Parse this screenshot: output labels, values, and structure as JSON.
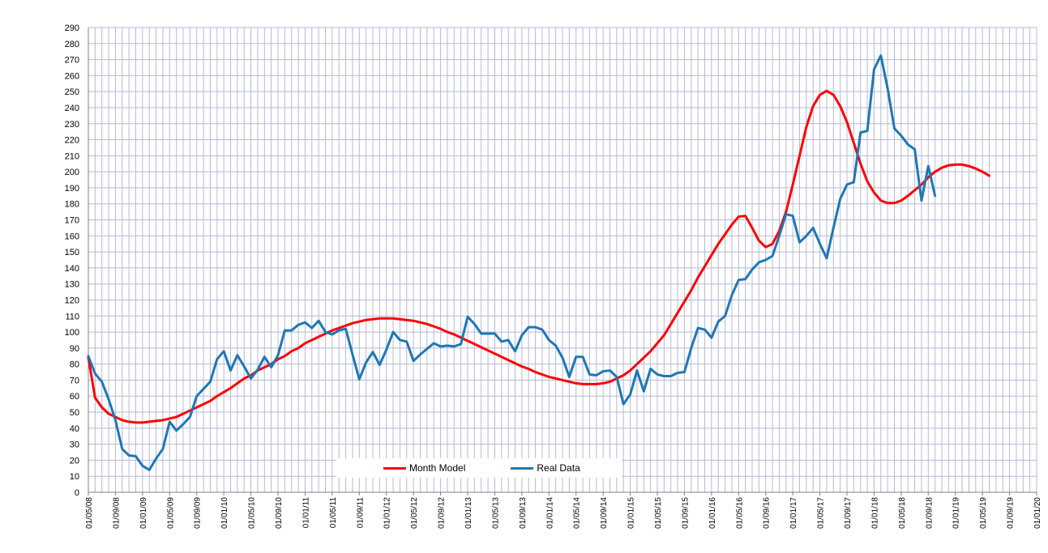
{
  "colors": {
    "model": "#FF0000",
    "real": "#1F77B4",
    "grid": "#B8B8D8",
    "axis": "#808080"
  },
  "chart_data": {
    "type": "line",
    "title": "",
    "xlabel": "",
    "ylabel": "",
    "ylim": [
      0,
      290
    ],
    "yticks": [
      0,
      10,
      20,
      30,
      40,
      50,
      60,
      70,
      80,
      90,
      100,
      110,
      120,
      130,
      140,
      150,
      160,
      170,
      180,
      190,
      200,
      210,
      220,
      230,
      240,
      250,
      260,
      270,
      280,
      290
    ],
    "x_ticklabels": [
      "01/05/08",
      "01/09/08",
      "01/01/09",
      "01/05/09",
      "01/09/09",
      "01/01/10",
      "01/05/10",
      "01/09/10",
      "01/01/11",
      "01/05/11",
      "01/09/11",
      "01/01/12",
      "01/05/12",
      "01/09/12",
      "01/01/13",
      "01/05/13",
      "01/09/13",
      "01/01/14",
      "01/05/14",
      "01/09/14",
      "01/01/15",
      "01/05/15",
      "01/09/15",
      "01/01/16",
      "01/05/16",
      "01/09/16",
      "01/01/17",
      "01/05/17",
      "01/09/17",
      "01/01/18",
      "01/05/18",
      "01/09/18",
      "01/01/19",
      "01/05/19",
      "01/09/19",
      "01/01/20"
    ],
    "x_index_range": [
      0,
      140
    ],
    "grid": true,
    "legend": "bottom-center",
    "series": [
      {
        "name": "Month Model",
        "color": "#FF0000",
        "points": [
          [
            0,
            84
          ],
          [
            1,
            59
          ],
          [
            2,
            53
          ],
          [
            3,
            49
          ],
          [
            4,
            47
          ],
          [
            5,
            45
          ],
          [
            6,
            44
          ],
          [
            7,
            43.5
          ],
          [
            8,
            43.5
          ],
          [
            9,
            44
          ],
          [
            10,
            44.5
          ],
          [
            11,
            45
          ],
          [
            12,
            46
          ],
          [
            13,
            47
          ],
          [
            14,
            49
          ],
          [
            15,
            51
          ],
          [
            16,
            53
          ],
          [
            17,
            55
          ],
          [
            18,
            57
          ],
          [
            19,
            60
          ],
          [
            20,
            62.5
          ],
          [
            21,
            65
          ],
          [
            22,
            68
          ],
          [
            23,
            71
          ],
          [
            24,
            73
          ],
          [
            25,
            76
          ],
          [
            26,
            78
          ],
          [
            27,
            80
          ],
          [
            28,
            83
          ],
          [
            29,
            85
          ],
          [
            30,
            88
          ],
          [
            31,
            90
          ],
          [
            32,
            93
          ],
          [
            33,
            95
          ],
          [
            34,
            97
          ],
          [
            35,
            99
          ],
          [
            36,
            101
          ],
          [
            37,
            102.5
          ],
          [
            38,
            104
          ],
          [
            39,
            105.5
          ],
          [
            40,
            106.5
          ],
          [
            41,
            107.5
          ],
          [
            42,
            108
          ],
          [
            43,
            108.5
          ],
          [
            44,
            108.5
          ],
          [
            45,
            108.5
          ],
          [
            46,
            108
          ],
          [
            47,
            107.5
          ],
          [
            48,
            107
          ],
          [
            49,
            106
          ],
          [
            50,
            105
          ],
          [
            51,
            103.5
          ],
          [
            52,
            102
          ],
          [
            53,
            100
          ],
          [
            54,
            98.5
          ],
          [
            55,
            96.5
          ],
          [
            56,
            94.5
          ],
          [
            57,
            92.5
          ],
          [
            58,
            90.5
          ],
          [
            59,
            88.5
          ],
          [
            60,
            86.5
          ],
          [
            61,
            84.5
          ],
          [
            62,
            82.5
          ],
          [
            63,
            80.5
          ],
          [
            64,
            78.5
          ],
          [
            65,
            77
          ],
          [
            66,
            75
          ],
          [
            67,
            73.5
          ],
          [
            68,
            72
          ],
          [
            69,
            71
          ],
          [
            70,
            70
          ],
          [
            71,
            69
          ],
          [
            72,
            68
          ],
          [
            73,
            67.5
          ],
          [
            74,
            67.5
          ],
          [
            75,
            67.5
          ],
          [
            76,
            68
          ],
          [
            77,
            69
          ],
          [
            78,
            71
          ],
          [
            79,
            73
          ],
          [
            80,
            76
          ],
          [
            81,
            80
          ],
          [
            82,
            84
          ],
          [
            83,
            88
          ],
          [
            84,
            93
          ],
          [
            85,
            98
          ],
          [
            86,
            105
          ],
          [
            87,
            112
          ],
          [
            88,
            119
          ],
          [
            89,
            126
          ],
          [
            90,
            134
          ],
          [
            91,
            141
          ],
          [
            92,
            148
          ],
          [
            93,
            155
          ],
          [
            94,
            161
          ],
          [
            95,
            167
          ],
          [
            96,
            172
          ],
          [
            97,
            172.5
          ],
          [
            98,
            165
          ],
          [
            99,
            157
          ],
          [
            100,
            153
          ],
          [
            101,
            155
          ],
          [
            102,
            163
          ],
          [
            103,
            175
          ],
          [
            104,
            192
          ],
          [
            105,
            210
          ],
          [
            106,
            228
          ],
          [
            107,
            241
          ],
          [
            108,
            248
          ],
          [
            109,
            250.5
          ],
          [
            110,
            248
          ],
          [
            111,
            241
          ],
          [
            112,
            231
          ],
          [
            113,
            218
          ],
          [
            114,
            205
          ],
          [
            115,
            194
          ],
          [
            116,
            187
          ],
          [
            117,
            182
          ],
          [
            118,
            180.5
          ],
          [
            119,
            180.5
          ],
          [
            120,
            182
          ],
          [
            121,
            185
          ],
          [
            122,
            188.5
          ],
          [
            123,
            192
          ],
          [
            124,
            196.5
          ],
          [
            125,
            200
          ],
          [
            126,
            202.5
          ],
          [
            127,
            204
          ],
          [
            128,
            204.5
          ],
          [
            129,
            204.5
          ],
          [
            130,
            203.5
          ],
          [
            131,
            202
          ],
          [
            132,
            200
          ],
          [
            133,
            197.5
          ]
        ]
      },
      {
        "name": "Real Data",
        "color": "#1F77B4",
        "points": [
          [
            0,
            85
          ],
          [
            1,
            74
          ],
          [
            2,
            69
          ],
          [
            3,
            58
          ],
          [
            4,
            45
          ],
          [
            5,
            27
          ],
          [
            6,
            23
          ],
          [
            7,
            22.5
          ],
          [
            8,
            16.5
          ],
          [
            9,
            14
          ],
          [
            10,
            21
          ],
          [
            11,
            27
          ],
          [
            12,
            44
          ],
          [
            13,
            38.5
          ],
          [
            14,
            42.5
          ],
          [
            15,
            47
          ],
          [
            16,
            60
          ],
          [
            17,
            64.5
          ],
          [
            18,
            69
          ],
          [
            19,
            83
          ],
          [
            20,
            88
          ],
          [
            21,
            76
          ],
          [
            22,
            85.5
          ],
          [
            23,
            78.5
          ],
          [
            24,
            71
          ],
          [
            25,
            76.5
          ],
          [
            26,
            84.5
          ],
          [
            27,
            78
          ],
          [
            28,
            85.5
          ],
          [
            29,
            101
          ],
          [
            30,
            101
          ],
          [
            31,
            104.5
          ],
          [
            32,
            106
          ],
          [
            33,
            102.5
          ],
          [
            34,
            107
          ],
          [
            35,
            100
          ],
          [
            36,
            98.5
          ],
          [
            37,
            101
          ],
          [
            38,
            102
          ],
          [
            39,
            86
          ],
          [
            40,
            70.5
          ],
          [
            41,
            81
          ],
          [
            42,
            87.5
          ],
          [
            43,
            79.5
          ],
          [
            44,
            89
          ],
          [
            45,
            100
          ],
          [
            46,
            95
          ],
          [
            47,
            94
          ],
          [
            48,
            82
          ],
          [
            49,
            86
          ],
          [
            50,
            89.5
          ],
          [
            51,
            93
          ],
          [
            52,
            91
          ],
          [
            53,
            91.5
          ],
          [
            54,
            91
          ],
          [
            55,
            92.5
          ],
          [
            56,
            109.5
          ],
          [
            57,
            105
          ],
          [
            58,
            99
          ],
          [
            59,
            99
          ],
          [
            60,
            99
          ],
          [
            61,
            94
          ],
          [
            62,
            95
          ],
          [
            63,
            88
          ],
          [
            64,
            98
          ],
          [
            65,
            103
          ],
          [
            66,
            103
          ],
          [
            67,
            101.5
          ],
          [
            68,
            95
          ],
          [
            69,
            91.5
          ],
          [
            70,
            84
          ],
          [
            71,
            72
          ],
          [
            72,
            84.5
          ],
          [
            73,
            84.5
          ],
          [
            74,
            73.5
          ],
          [
            75,
            73
          ],
          [
            76,
            75.5
          ],
          [
            77,
            76
          ],
          [
            78,
            72
          ],
          [
            79,
            55
          ],
          [
            80,
            61
          ],
          [
            81,
            76
          ],
          [
            82,
            63
          ],
          [
            83,
            77
          ],
          [
            84,
            73.5
          ],
          [
            85,
            72.5
          ],
          [
            86,
            72.5
          ],
          [
            87,
            74.5
          ],
          [
            88,
            75
          ],
          [
            89,
            90
          ],
          [
            90,
            102.5
          ],
          [
            91,
            101.5
          ],
          [
            92,
            96.5
          ],
          [
            93,
            106.5
          ],
          [
            94,
            110
          ],
          [
            95,
            123
          ],
          [
            96,
            132.5
          ],
          [
            97,
            133
          ],
          [
            98,
            139
          ],
          [
            99,
            143.5
          ],
          [
            100,
            145
          ],
          [
            101,
            147.5
          ],
          [
            102,
            160
          ],
          [
            103,
            173.5
          ],
          [
            104,
            172.5
          ],
          [
            105,
            156
          ],
          [
            106,
            160
          ],
          [
            107,
            165
          ],
          [
            108,
            155
          ],
          [
            109,
            146
          ],
          [
            110,
            165
          ],
          [
            111,
            183
          ],
          [
            112,
            192
          ],
          [
            113,
            193.5
          ],
          [
            114,
            224.5
          ],
          [
            115,
            225.5
          ],
          [
            116,
            264
          ],
          [
            117,
            272.5
          ],
          [
            118,
            252
          ],
          [
            119,
            227
          ],
          [
            120,
            222.5
          ],
          [
            121,
            217
          ],
          [
            122,
            214
          ],
          [
            123,
            182
          ],
          [
            124,
            203.5
          ],
          [
            125,
            185
          ]
        ]
      }
    ]
  }
}
